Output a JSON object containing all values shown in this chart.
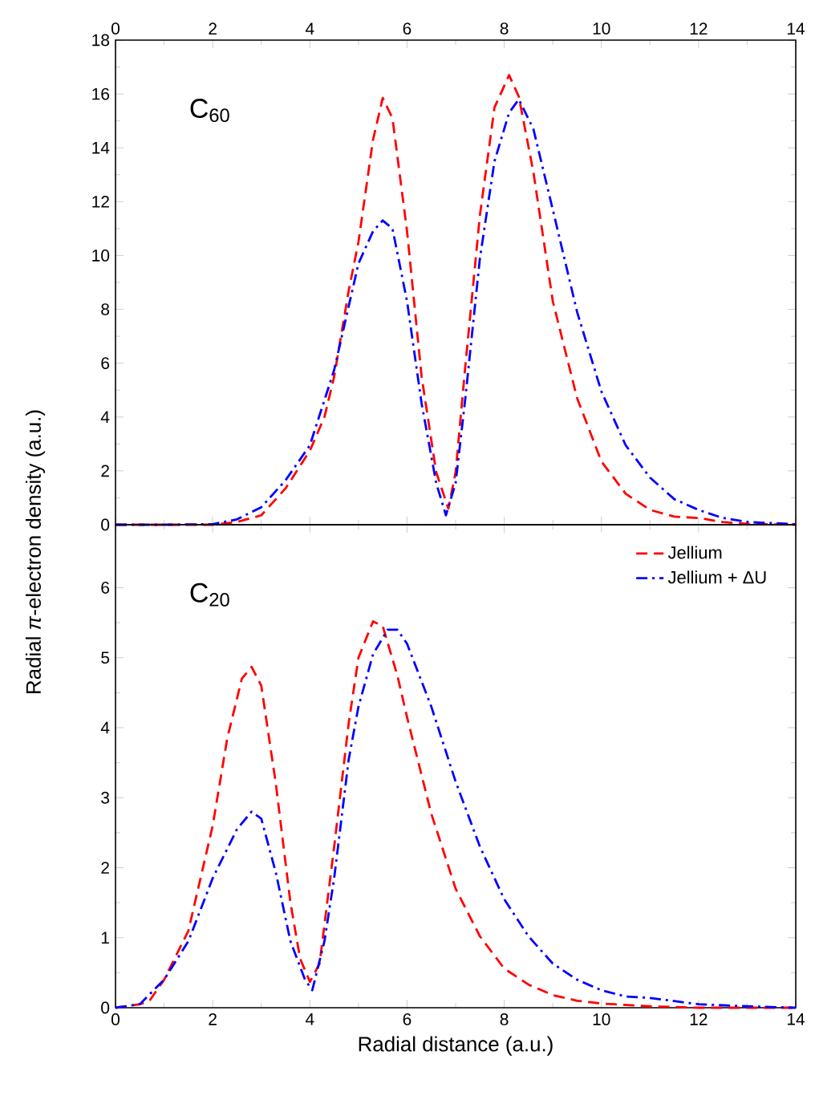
{
  "chart_data": [
    {
      "type": "line",
      "ylabel": "Radial *π*-electron density (a.u.)",
      "annotations": [
        "C$_{60}$"
      ],
      "xlim": [
        0,
        14
      ],
      "xticks": [
        0,
        2,
        4,
        6,
        8,
        10,
        12,
        14
      ],
      "ylim": [
        0,
        18
      ],
      "yticks": [
        0,
        2,
        4,
        6,
        8,
        10,
        12,
        14,
        16,
        18
      ],
      "series": [
        {
          "color": "#ff0000",
          "line_style": "dashed",
          "x": [
            0,
            1,
            2,
            2.5,
            3,
            3.5,
            4,
            4.3,
            4.5,
            4.8,
            5,
            5.3,
            5.5,
            5.7,
            6,
            6.3,
            6.6,
            6.85,
            7,
            7.2,
            7.5,
            7.8,
            8.1,
            8.3,
            8.6,
            9,
            9.5,
            10,
            10.5,
            11,
            11.5,
            12,
            12.5,
            13,
            14
          ],
          "values": [
            0,
            0,
            0,
            0.1,
            0.35,
            1.35,
            2.75,
            4,
            5.5,
            8.7,
            10.5,
            14.3,
            15.85,
            15.1,
            10.9,
            5.5,
            1.95,
            0.6,
            1.95,
            5.9,
            11.5,
            15.5,
            16.7,
            15.9,
            13.1,
            8.3,
            4.7,
            2.35,
            1.15,
            0.55,
            0.3,
            0.25,
            0.1,
            0.03,
            0
          ]
        },
        {
          "color": "#0000ff",
          "line_style": "dashdot",
          "x": [
            0,
            1,
            2,
            2.5,
            3,
            3.5,
            4,
            4.5,
            5,
            5.3,
            5.5,
            5.7,
            6,
            6.3,
            6.6,
            6.8,
            7,
            7.2,
            7.5,
            7.8,
            8.1,
            8.3,
            8.6,
            9,
            9.5,
            10,
            10.5,
            11,
            11.5,
            12,
            12.5,
            13,
            14
          ],
          "values": [
            0,
            0,
            0.02,
            0.2,
            0.65,
            1.65,
            2.95,
            5.75,
            9.7,
            10.9,
            11.3,
            11,
            8.3,
            4.5,
            1.55,
            0.35,
            1.55,
            4.7,
            9.9,
            13.5,
            15.3,
            15.8,
            14.7,
            11.7,
            7.9,
            4.95,
            2.95,
            1.75,
            0.95,
            0.55,
            0.25,
            0.1,
            0.02
          ]
        }
      ]
    },
    {
      "type": "line",
      "xlabel": "Radial distance (a.u.)",
      "annotations": [
        "C$_{20}$"
      ],
      "xlim": [
        0,
        14
      ],
      "xticks": [
        0,
        2,
        4,
        6,
        8,
        10,
        12,
        14
      ],
      "ylim": [
        0,
        6.9
      ],
      "yticks": [
        0,
        1,
        2,
        3,
        4,
        5,
        6
      ],
      "legend": "top right",
      "series": [
        {
          "name": "Jellium",
          "color": "#ff0000",
          "line_style": "dashed",
          "x": [
            0,
            0.5,
            0.7,
            1,
            1.5,
            2,
            2.3,
            2.6,
            2.8,
            3,
            3.3,
            3.6,
            3.8,
            4,
            4.2,
            4.5,
            4.8,
            5,
            5.3,
            5.5,
            5.8,
            6,
            6.5,
            7,
            7.5,
            8,
            8.5,
            9,
            9.5,
            10,
            11,
            12,
            14
          ],
          "values": [
            0,
            0.05,
            0.1,
            0.4,
            1.1,
            2.6,
            3.85,
            4.7,
            4.87,
            4.6,
            3.2,
            1.5,
            0.7,
            0.37,
            0.63,
            2.3,
            4.07,
            5,
            5.52,
            5.45,
            4.75,
            4.15,
            2.77,
            1.7,
            1.02,
            0.56,
            0.33,
            0.18,
            0.1,
            0.06,
            0.02,
            0,
            0
          ]
        },
        {
          "name": "Jellium + ΔU",
          "color": "#0000ff",
          "line_style": "dashdot",
          "x": [
            0,
            0.5,
            1,
            1.5,
            2,
            2.5,
            2.8,
            3,
            3.3,
            3.6,
            3.9,
            4.05,
            4.3,
            4.5,
            4.8,
            5,
            5.3,
            5.6,
            5.8,
            6,
            6.5,
            7,
            7.5,
            8,
            8.5,
            9,
            9.5,
            10,
            10.5,
            11,
            12,
            13,
            14
          ],
          "values": [
            0,
            0.05,
            0.4,
            0.95,
            1.85,
            2.55,
            2.8,
            2.7,
            1.93,
            0.95,
            0.4,
            0.25,
            0.95,
            1.85,
            3.55,
            4.3,
            5.05,
            5.4,
            5.4,
            5.2,
            4.3,
            3.23,
            2.3,
            1.55,
            1.02,
            0.63,
            0.4,
            0.25,
            0.16,
            0.14,
            0.05,
            0.02,
            0
          ]
        }
      ]
    }
  ]
}
